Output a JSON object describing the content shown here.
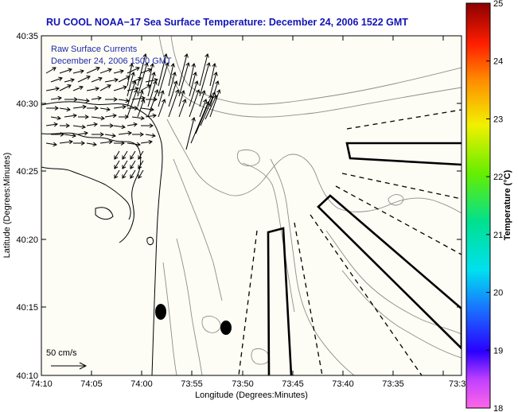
{
  "title": "RU COOL  NOAA−17  Sea Surface Temperature:  December 24, 2006 1522 GMT",
  "legend": {
    "line1": "Raw Surface Currents",
    "line2": "December 24, 2006 1500 GMT"
  },
  "scale_bar_label": "50 cm/s",
  "axes": {
    "xlabel": "Longitude (Degrees:Minutes)",
    "ylabel": "Latitude (Degrees:Minutes)",
    "x_ticks": [
      "74:10",
      "74:05",
      "74:00",
      "73:55",
      "73:50",
      "73:45",
      "73:40",
      "73:35",
      "73:3"
    ],
    "y_ticks": [
      "40:35",
      "40:30",
      "40:25",
      "40:20",
      "40:15",
      "40:10"
    ]
  },
  "colorbar": {
    "label": "Temperature (°C)",
    "ticks": [
      "25",
      "24",
      "23",
      "22",
      "21",
      "20",
      "19",
      "18"
    ],
    "range": [
      18,
      25
    ]
  },
  "colors": {
    "title": "#1414b4",
    "legend_text": "#1e2aa8",
    "plot_background": "#fdfdf6",
    "contour": "#8c8c8c",
    "coast": "#000000"
  }
}
